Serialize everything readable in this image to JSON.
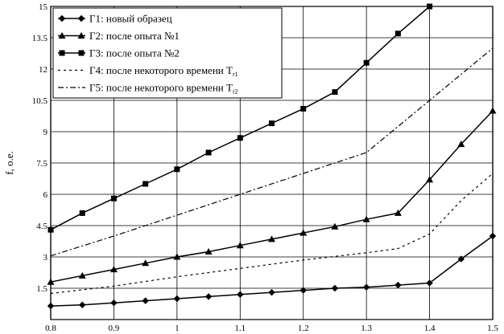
{
  "chart_data": {
    "type": "line",
    "xlabel": "",
    "ylabel": "f, o.e.",
    "xlim": [
      0.8,
      1.5
    ],
    "ylim": [
      0,
      15
    ],
    "x_ticks": [
      "0.8",
      "0.9",
      "1",
      "1.1",
      "1.2",
      "1.3",
      "1.4",
      "1.5"
    ],
    "y_ticks": [
      "1.5",
      "3",
      "4.5",
      "6",
      "7.5",
      "9",
      "10.5",
      "12",
      "13.5",
      "15"
    ],
    "grid": true,
    "legend_position": "top-left",
    "series": [
      {
        "name": "Г1: новый образец",
        "legend_main": "Г1: новый образец",
        "legend_sub": "",
        "style": "solid",
        "marker": "diamond",
        "x": [
          0.8,
          0.85,
          0.9,
          0.95,
          1.0,
          1.05,
          1.1,
          1.15,
          1.2,
          1.25,
          1.3,
          1.35,
          1.4,
          1.45,
          1.5
        ],
        "y": [
          0.65,
          0.7,
          0.8,
          0.9,
          1.0,
          1.1,
          1.2,
          1.3,
          1.4,
          1.5,
          1.55,
          1.65,
          1.75,
          2.9,
          4.0
        ]
      },
      {
        "name": "Г2: после опыта №1",
        "legend_main": "Г2: после опыта №1",
        "legend_sub": "",
        "style": "solid",
        "marker": "triangle",
        "x": [
          0.8,
          0.85,
          0.9,
          0.95,
          1.0,
          1.05,
          1.1,
          1.15,
          1.2,
          1.25,
          1.3,
          1.35,
          1.4,
          1.45,
          1.5
        ],
        "y": [
          1.8,
          2.1,
          2.4,
          2.7,
          3.0,
          3.25,
          3.55,
          3.85,
          4.15,
          4.45,
          4.8,
          5.1,
          6.7,
          8.4,
          10.0
        ]
      },
      {
        "name": "Г3: после опыта №2",
        "legend_main": "Г3: после опыта №2",
        "legend_sub": "",
        "style": "solid",
        "marker": "square",
        "x": [
          0.8,
          0.85,
          0.9,
          0.95,
          1.0,
          1.05,
          1.1,
          1.15,
          1.2,
          1.25,
          1.3,
          1.35,
          1.4
        ],
        "y": [
          4.3,
          5.1,
          5.8,
          6.5,
          7.2,
          8.0,
          8.7,
          9.4,
          10.1,
          10.9,
          12.3,
          13.7,
          15.0
        ]
      },
      {
        "name": "Г4: после некоторого времени Tr1",
        "legend_main": "Г4: после некоторого времени T",
        "legend_sub": "r1",
        "style": "dotted",
        "marker": "none",
        "x": [
          0.8,
          0.9,
          1.0,
          1.1,
          1.2,
          1.3,
          1.35,
          1.4,
          1.45,
          1.5
        ],
        "y": [
          1.25,
          1.6,
          2.05,
          2.45,
          2.85,
          3.2,
          3.4,
          4.1,
          5.7,
          7.0
        ]
      },
      {
        "name": "Г5: после некоторого времени Tr2",
        "legend_main": "Г5: после некоторого времени T",
        "legend_sub": "r2",
        "style": "dashdot",
        "marker": "none",
        "x": [
          0.8,
          0.9,
          1.0,
          1.1,
          1.2,
          1.3,
          1.4,
          1.5
        ],
        "y": [
          3.05,
          4.0,
          5.0,
          6.0,
          7.0,
          8.0,
          10.5,
          13.0
        ]
      }
    ]
  }
}
